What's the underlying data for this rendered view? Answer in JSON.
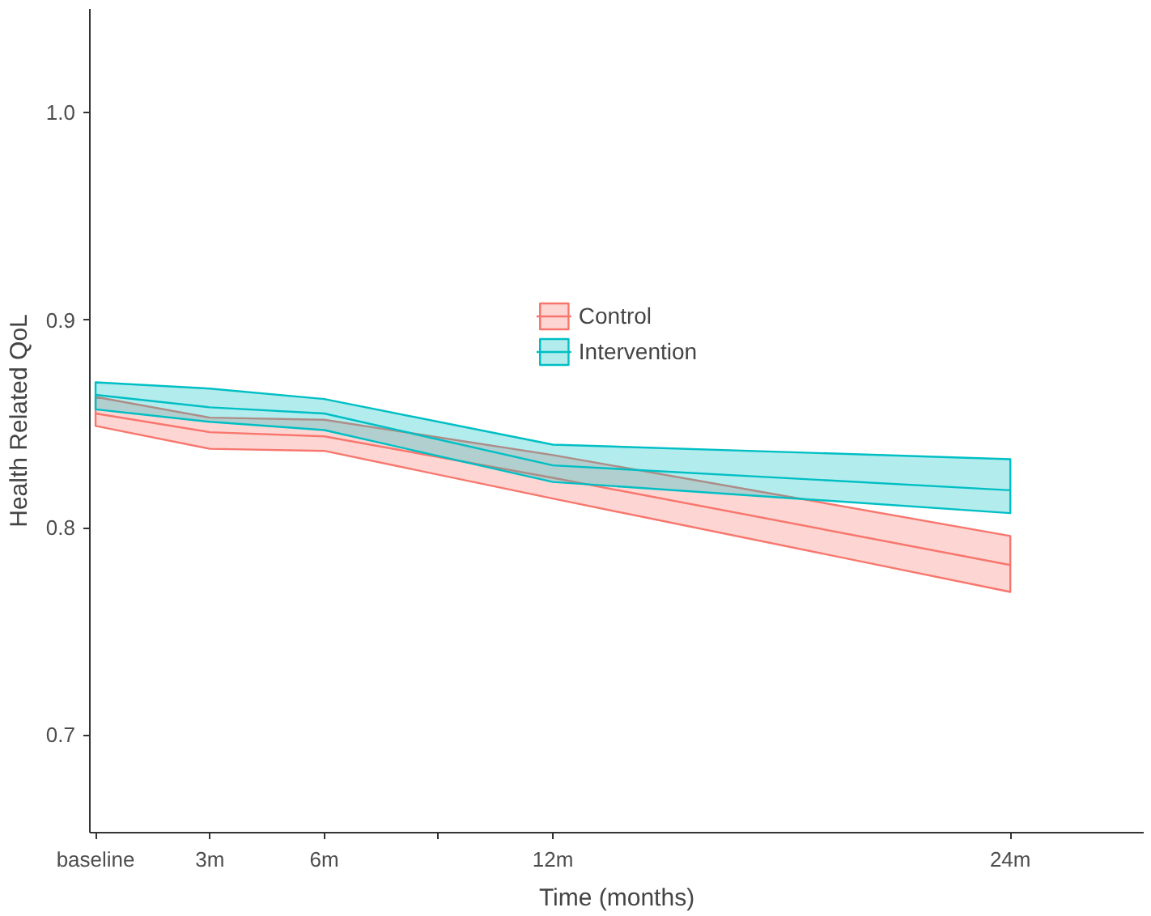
{
  "chart_data": {
    "type": "line",
    "xlabel": "Time (months)",
    "ylabel": "Health Related QoL",
    "x": [
      0,
      3,
      6,
      12,
      24
    ],
    "xlim": [
      -0.15,
      27.5
    ],
    "xticks": [
      {
        "value": 0,
        "label": "baseline"
      },
      {
        "value": 3,
        "label": "3m"
      },
      {
        "value": 6,
        "label": "6m"
      },
      {
        "value": 9,
        "label": null
      },
      {
        "value": 12,
        "label": "12m"
      },
      {
        "value": 24,
        "label": "24m"
      }
    ],
    "ylim": [
      0.653,
      1.05
    ],
    "yticks": [
      0.7,
      0.8,
      0.9,
      {
        "value": 1.0,
        "label": "1.0"
      }
    ],
    "series": [
      {
        "name": "Control",
        "color": "#f8766d",
        "values": [
          0.855,
          0.846,
          0.844,
          0.824,
          0.782
        ],
        "lower": [
          0.849,
          0.838,
          0.837,
          0.814,
          0.769
        ],
        "upper": [
          0.863,
          0.853,
          0.852,
          0.835,
          0.796
        ]
      },
      {
        "name": "Intervention",
        "color": "#00bfc4",
        "values": [
          0.864,
          0.858,
          0.855,
          0.83,
          0.818
        ],
        "lower": [
          0.857,
          0.851,
          0.847,
          0.822,
          0.807
        ],
        "upper": [
          0.87,
          0.867,
          0.862,
          0.84,
          0.833
        ]
      }
    ],
    "grid": false,
    "legend": "top",
    "marker": "none",
    "line_style": "solid"
  }
}
